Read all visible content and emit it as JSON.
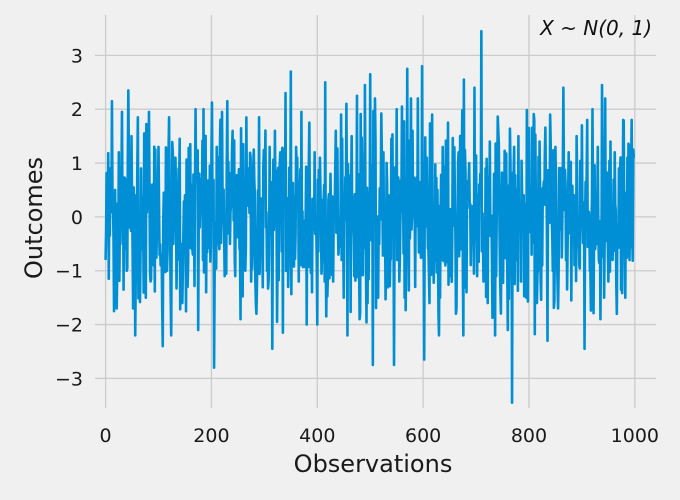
{
  "chart_data": {
    "type": "line",
    "title": "",
    "annotation": "X ~ N(0, 1)",
    "xlabel": "Observations",
    "ylabel": "Outcomes",
    "xlim": [
      -20,
      1040
    ],
    "ylim": [
      -3.55,
      3.75
    ],
    "x_ticks": [
      0,
      200,
      400,
      600,
      800,
      1000
    ],
    "x_tick_labels": [
      "0",
      "200",
      "400",
      "600",
      "800",
      "1000"
    ],
    "y_ticks": [
      -3,
      -2,
      -1,
      0,
      1,
      2,
      3
    ],
    "y_tick_labels": [
      "−3",
      "−2",
      "−1",
      "0",
      "1",
      "2",
      "3"
    ],
    "grid": true,
    "series": [
      {
        "color": "#008fd5",
        "n": 1000,
        "distribution": "standard normal",
        "x_start": 0,
        "x_step": 1,
        "sample_values": [
          [
            0,
            -0.8
          ],
          [
            3,
            0.2
          ],
          [
            6,
            -1.15
          ],
          [
            9,
            0.9
          ],
          [
            12,
            2.15
          ],
          [
            15,
            -0.4
          ],
          [
            18,
            0.5
          ],
          [
            21,
            -1.7
          ],
          [
            25,
            1.2
          ],
          [
            28,
            -0.5
          ],
          [
            31,
            1.95
          ],
          [
            34,
            -1.35
          ],
          [
            37,
            0.7
          ],
          [
            40,
            -1.0
          ],
          [
            43,
            2.35
          ],
          [
            46,
            -0.2
          ],
          [
            49,
            1.5
          ],
          [
            52,
            -1.7
          ],
          [
            55,
            0.4
          ],
          [
            58,
            -0.9
          ],
          [
            61,
            1.85
          ],
          [
            64,
            -1.3
          ],
          [
            67,
            0.9
          ],
          [
            70,
            -0.6
          ],
          [
            73,
            1.55
          ],
          [
            76,
            -1.5
          ],
          [
            79,
            0.3
          ],
          [
            82,
            1.95
          ],
          [
            85,
            -1.2
          ],
          [
            88,
            0.6
          ],
          [
            91,
            -0.9
          ],
          [
            94,
            1.25
          ],
          [
            97,
            -0.3
          ],
          [
            100,
            1.3
          ],
          [
            104,
            -0.9
          ],
          [
            108,
            -2.4
          ],
          [
            112,
            0.4
          ],
          [
            116,
            -1.0
          ],
          [
            120,
            1.85
          ],
          [
            124,
            -2.2
          ],
          [
            128,
            -0.5
          ],
          [
            132,
            1.1
          ],
          [
            136,
            -0.8
          ],
          [
            140,
            1.45
          ],
          [
            145,
            -1.6
          ],
          [
            150,
            0.4
          ],
          [
            155,
            -1.3
          ],
          [
            160,
            1.35
          ],
          [
            165,
            -0.7
          ],
          [
            170,
            2.0
          ],
          [
            175,
            -2.1
          ],
          [
            180,
            0.7
          ],
          [
            185,
            2.0
          ],
          [
            190,
            -1.4
          ],
          [
            195,
            0.3
          ],
          [
            200,
            1.1
          ],
          [
            205,
            -2.8
          ],
          [
            210,
            1.3
          ],
          [
            215,
            -0.6
          ],
          [
            220,
            1.95
          ],
          [
            225,
            -1.1
          ],
          [
            230,
            2.15
          ],
          [
            235,
            -0.5
          ],
          [
            240,
            1.6
          ],
          [
            245,
            -1.1
          ],
          [
            250,
            0.4
          ],
          [
            255,
            -1.9
          ],
          [
            260,
            1.35
          ],
          [
            265,
            -0.6
          ],
          [
            270,
            0.9
          ],
          [
            275,
            -1.2
          ],
          [
            280,
            1.25
          ],
          [
            285,
            -1.8
          ],
          [
            290,
            1.85
          ],
          [
            295,
            -0.5
          ],
          [
            300,
            0.8
          ],
          [
            305,
            -1.0
          ],
          [
            310,
            1.3
          ],
          [
            315,
            -2.45
          ],
          [
            320,
            1.6
          ],
          [
            325,
            -0.7
          ],
          [
            330,
            1.2
          ],
          [
            335,
            -2.15
          ],
          [
            340,
            2.3
          ],
          [
            345,
            -1.3
          ],
          [
            350,
            2.7
          ],
          [
            355,
            -0.4
          ],
          [
            360,
            1.3
          ],
          [
            365,
            -1.2
          ],
          [
            370,
            1.95
          ],
          [
            375,
            -0.9
          ],
          [
            380,
            -2.0
          ],
          [
            385,
            1.75
          ],
          [
            390,
            -1.4
          ],
          [
            395,
            1.2
          ],
          [
            400,
            -2.0
          ],
          [
            405,
            1.1
          ],
          [
            410,
            -0.6
          ],
          [
            415,
            2.5
          ],
          [
            420,
            -1.1
          ],
          [
            425,
            0.8
          ],
          [
            430,
            -1.2
          ],
          [
            435,
            1.6
          ],
          [
            440,
            -0.7
          ],
          [
            445,
            1.9
          ],
          [
            450,
            -1.5
          ],
          [
            455,
            2.1
          ],
          [
            460,
            -0.3
          ],
          [
            465,
            1.5
          ],
          [
            470,
            -1.1
          ],
          [
            475,
            2.25
          ],
          [
            480,
            -1.9
          ],
          [
            485,
            0.8
          ],
          [
            490,
            2.45
          ],
          [
            495,
            -1.6
          ],
          [
            500,
            2.65
          ],
          [
            505,
            -2.75
          ],
          [
            510,
            1.4
          ],
          [
            515,
            -1.5
          ],
          [
            520,
            0.5
          ],
          [
            525,
            1.2
          ],
          [
            530,
            -0.8
          ],
          [
            535,
            0.4
          ],
          [
            540,
            1.45
          ],
          [
            545,
            -2.75
          ],
          [
            550,
            2.0
          ],
          [
            555,
            -1.2
          ],
          [
            560,
            2.05
          ],
          [
            565,
            -1.5
          ],
          [
            570,
            2.75
          ],
          [
            575,
            -0.4
          ],
          [
            580,
            1.6
          ],
          [
            585,
            -1.3
          ],
          [
            590,
            2.2
          ],
          [
            595,
            -0.6
          ],
          [
            598,
            2.8
          ],
          [
            602,
            -2.65
          ],
          [
            607,
            1.1
          ],
          [
            612,
            -1.6
          ],
          [
            617,
            1.9
          ],
          [
            622,
            -0.8
          ],
          [
            627,
            0.5
          ],
          [
            632,
            -1.5
          ],
          [
            637,
            1.3
          ],
          [
            642,
            -0.9
          ],
          [
            647,
            1.75
          ],
          [
            652,
            -1.1
          ],
          [
            657,
            0.3
          ],
          [
            662,
            -1.8
          ],
          [
            667,
            1.2
          ],
          [
            672,
            -0.6
          ],
          [
            677,
            2.55
          ],
          [
            682,
            -1.4
          ],
          [
            687,
            1.0
          ],
          [
            692,
            -0.5
          ],
          [
            697,
            2.4
          ],
          [
            702,
            -1.1
          ],
          [
            706,
            0.6
          ],
          [
            710,
            3.45
          ],
          [
            714,
            -1.2
          ],
          [
            718,
            0.9
          ],
          [
            722,
            -1.6
          ],
          [
            726,
            1.4
          ],
          [
            730,
            -0.7
          ],
          [
            734,
            0.8
          ],
          [
            738,
            -1.1
          ],
          [
            742,
            1.6
          ],
          [
            746,
            -1.4
          ],
          [
            750,
            0.2
          ],
          [
            755,
            1.1
          ],
          [
            760,
            -2.1
          ],
          [
            765,
            1.0
          ],
          [
            768,
            -3.45
          ],
          [
            772,
            1.3
          ],
          [
            776,
            -0.8
          ],
          [
            780,
            1.5
          ],
          [
            785,
            -1.2
          ],
          [
            790,
            0.4
          ],
          [
            795,
            -1.5
          ],
          [
            800,
            1.65
          ],
          [
            805,
            -0.7
          ],
          [
            810,
            1.8
          ],
          [
            815,
            -1.6
          ],
          [
            820,
            1.4
          ],
          [
            825,
            -0.9
          ],
          [
            830,
            1.2
          ],
          [
            835,
            -2.3
          ],
          [
            840,
            1.9
          ],
          [
            845,
            -1.0
          ],
          [
            850,
            1.3
          ],
          [
            855,
            -1.7
          ],
          [
            860,
            0.6
          ],
          [
            865,
            2.4
          ],
          [
            870,
            -0.8
          ],
          [
            875,
            1.2
          ],
          [
            880,
            -1.55
          ],
          [
            885,
            0.4
          ],
          [
            890,
            1.5
          ],
          [
            895,
            -0.9
          ],
          [
            900,
            1.7
          ],
          [
            905,
            -2.45
          ],
          [
            910,
            1.8
          ],
          [
            915,
            -1.0
          ],
          [
            920,
            2.0
          ],
          [
            925,
            -0.6
          ],
          [
            930,
            1.3
          ],
          [
            935,
            -1.9
          ],
          [
            938,
            2.45
          ],
          [
            942,
            -1.5
          ],
          [
            946,
            0.8
          ],
          [
            950,
            -1.2
          ],
          [
            954,
            1.4
          ],
          [
            958,
            -0.8
          ],
          [
            962,
            1.2
          ],
          [
            966,
            -1.8
          ],
          [
            970,
            0.9
          ],
          [
            974,
            -1.35
          ],
          [
            978,
            1.8
          ],
          [
            982,
            -1.5
          ],
          [
            986,
            1.1
          ],
          [
            990,
            -0.8
          ],
          [
            994,
            1.8
          ],
          [
            998,
            1.1
          ]
        ]
      }
    ]
  }
}
